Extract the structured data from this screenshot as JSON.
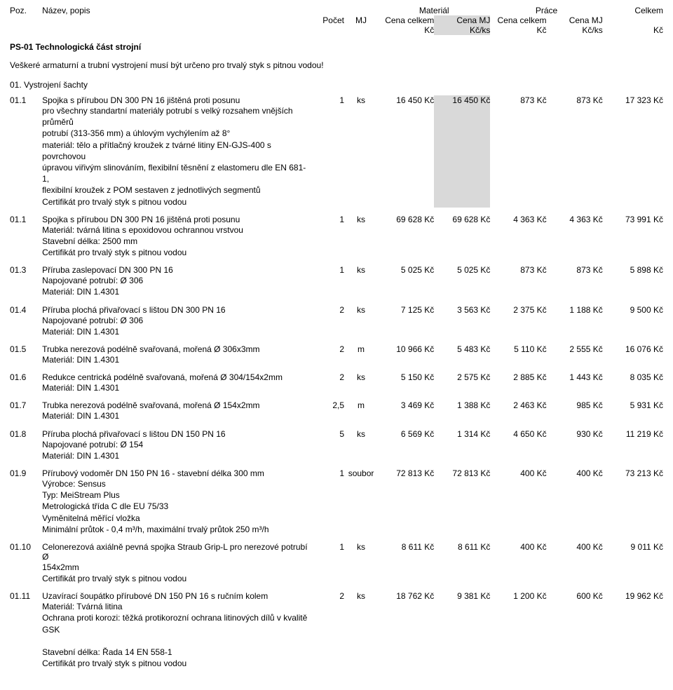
{
  "header": {
    "poz": "Poz.",
    "nazev": "Název, popis",
    "material": "Materiál",
    "prace": "Práce",
    "celkem": "Celkem",
    "pocet": "Počet",
    "mj": "MJ",
    "cena_celkem": "Cena celkem",
    "kc": "Kč",
    "cena_mj": "Cena MJ",
    "kcks": "Kč/ks"
  },
  "section": {
    "title": "PS-01 Technologická část strojní",
    "note": "Veškeré armaturní a trubní vystrojení musí být určeno pro trvalý styk s pitnou vodou!",
    "sub": "01. Vystrojení šachty"
  },
  "rows": [
    {
      "poz": "01.1",
      "title": "Spojka s přírubou DN 300 PN 16 jištěná proti posunu",
      "lines": [
        "pro všechny standartní materiály potrubí s velký rozsahem vnějších průměrů",
        "potrubí (313-356 mm) a úhlovým vychýlením až 8°",
        "materiál: tělo a přítlačný kroužek z tvárné litiny EN-GJS-400 s povrchovou",
        "úpravou viřivým slinováním, flexibilní těsnění z elastomeru dle EN 681-1,",
        "flexibilní kroužek z POM sestaven z jednotlivých segmentů",
        "Certifikát pro trvalý styk s pitnou vodou"
      ],
      "pocet": "1",
      "mj": "ks",
      "mat_celkem": "16 450 Kč",
      "mat_mj": "16 450 Kč",
      "prace_celkem": "873 Kč",
      "prace_mj": "873 Kč",
      "celkem": "17 323 Kč",
      "stripe": true
    },
    {
      "poz": "01.1",
      "title": "Spojka s přírubou DN 300 PN 16 jištěná proti posunu",
      "lines": [
        "Materiál: tvárná litina s epoxidovou ochrannou vrstvou",
        "Stavební délka: 2500 mm",
        "Certifikát pro trvalý styk s pitnou vodou"
      ],
      "pocet": "1",
      "mj": "ks",
      "mat_celkem": "69 628 Kč",
      "mat_mj": "69 628 Kč",
      "prace_celkem": "4 363 Kč",
      "prace_mj": "4 363 Kč",
      "celkem": "73 991 Kč"
    },
    {
      "poz": "01.3",
      "title": "Příruba zaslepovací DN 300 PN 16",
      "lines": [
        "Napojované potrubí: Ø 306",
        "Materiál: DIN 1.4301"
      ],
      "pocet": "1",
      "mj": "ks",
      "mat_celkem": "5 025 Kč",
      "mat_mj": "5 025 Kč",
      "prace_celkem": "873 Kč",
      "prace_mj": "873 Kč",
      "celkem": "5 898 Kč"
    },
    {
      "poz": "01.4",
      "title": "Příruba plochá přivařovací s lištou DN 300 PN 16",
      "lines": [
        "Napojované potrubí: Ø 306",
        "Materiál: DIN 1.4301"
      ],
      "pocet": "2",
      "mj": "ks",
      "mat_celkem": "7 125 Kč",
      "mat_mj": "3 563 Kč",
      "prace_celkem": "2 375 Kč",
      "prace_mj": "1 188 Kč",
      "celkem": "9 500 Kč"
    },
    {
      "poz": "01.5",
      "title": "Trubka nerezová podélně svařovaná, mořená Ø 306x3mm",
      "lines": [
        "Materiál: DIN 1.4301"
      ],
      "pocet": "2",
      "mj": "m",
      "mat_celkem": "10 966 Kč",
      "mat_mj": "5 483 Kč",
      "prace_celkem": "5 110 Kč",
      "prace_mj": "2 555 Kč",
      "celkem": "16 076 Kč"
    },
    {
      "poz": "01.6",
      "title": "Redukce centrická podélně svařovaná, mořená Ø 304/154x2mm",
      "lines": [
        "Materiál: DIN 1.4301"
      ],
      "pocet": "2",
      "mj": "ks",
      "mat_celkem": "5 150 Kč",
      "mat_mj": "2 575 Kč",
      "prace_celkem": "2 885 Kč",
      "prace_mj": "1 443 Kč",
      "celkem": "8 035 Kč"
    },
    {
      "poz": "01.7",
      "title": "Trubka nerezová podélně svařovaná, mořená Ø 154x2mm",
      "lines": [
        "Materiál: DIN 1.4301"
      ],
      "pocet": "2,5",
      "mj": "m",
      "mat_celkem": "3 469 Kč",
      "mat_mj": "1 388 Kč",
      "prace_celkem": "2 463 Kč",
      "prace_mj": "985 Kč",
      "celkem": "5 931 Kč"
    },
    {
      "poz": "01.8",
      "title": "Příruba plochá přivařovací s lištou DN 150 PN 16",
      "lines": [
        "Napojované potrubí: Ø 154",
        "Materiál: DIN 1.4301"
      ],
      "pocet": "5",
      "mj": "ks",
      "mat_celkem": "6 569 Kč",
      "mat_mj": "1 314 Kč",
      "prace_celkem": "4 650 Kč",
      "prace_mj": "930 Kč",
      "celkem": "11 219 Kč"
    },
    {
      "poz": "01.9",
      "title": "Přírubový vodoměr DN 150 PN 16 - stavební délka 300 mm",
      "lines": [
        "Výrobce: Sensus",
        "Typ: MeiStream Plus",
        "Metrologická třída C dle EU 75/33",
        "Vyměnitelná měřící vložka",
        "Minimální průtok - 0,4 m³/h, maximální trvalý průtok 250 m³/h"
      ],
      "pocet": "1",
      "mj": "soubor",
      "mat_celkem": "72 813 Kč",
      "mat_mj": "72 813 Kč",
      "prace_celkem": "400 Kč",
      "prace_mj": "400 Kč",
      "celkem": "73 213 Kč"
    },
    {
      "poz": "01.10",
      "title": "Celonerezová axiálně pevná spojka Straub Grip-L pro nerezové potrubí Ø",
      "lines": [
        "154x2mm",
        "Certifikát pro trvalý styk s pitnou vodou"
      ],
      "pocet": "1",
      "mj": "ks",
      "mat_celkem": "8 611 Kč",
      "mat_mj": "8 611 Kč",
      "prace_celkem": "400 Kč",
      "prace_mj": "400 Kč",
      "celkem": "9 011 Kč"
    },
    {
      "poz": "01.11",
      "title": "Uzavírací šoupátko přírubové DN 150 PN 16 s ručním kolem",
      "lines": [
        "Materiál: Tvárná litina",
        "Ochrana proti korozi: těžká protikorozní ochrana litinových dílů v kvalitě GSK",
        "",
        "Stavební délka: Řada 14 EN 558-1",
        "Certifikát pro trvalý styk s pitnou vodou"
      ],
      "pocet": "2",
      "mj": "ks",
      "mat_celkem": "18 762 Kč",
      "mat_mj": "9 381 Kč",
      "prace_celkem": "1 200 Kč",
      "prace_mj": "600 Kč",
      "celkem": "19 962 Kč"
    }
  ]
}
